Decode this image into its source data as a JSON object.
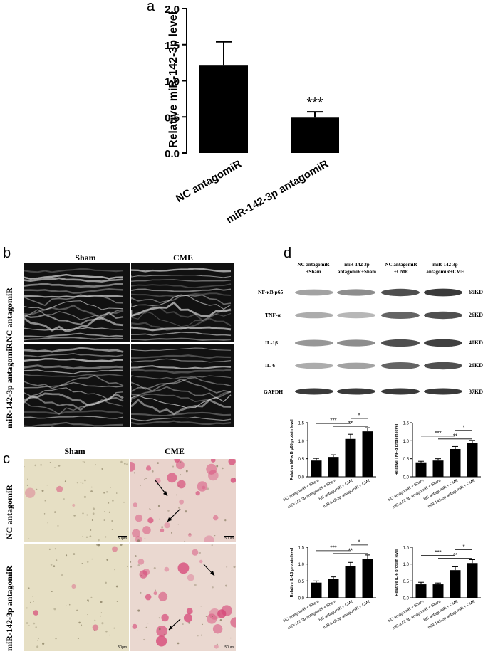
{
  "panels": {
    "a": "a",
    "b": "b",
    "c": "c",
    "d": "d"
  },
  "colors": {
    "bar": "#000000",
    "histo_bg": "#e6dfc4",
    "stain": "#d8527a",
    "echo_bg": "#141414"
  },
  "echo": {
    "col_labels": [
      "Sham",
      "CME"
    ],
    "row_labels": [
      "NC antagomiR",
      "miR-142-3p antagomiR"
    ]
  },
  "histology": {
    "col_labels": [
      "Sham",
      "CME"
    ],
    "row_labels": [
      "NC antagomiR",
      "miR-142-3p antagomiR"
    ],
    "scale_bar": "50μm"
  },
  "western": {
    "lanes": [
      "NC antagomiR\n+Sham",
      "miR-142-3p\nantagomiR+Sham",
      "NC antagomiR\n+CME",
      "miR-142-3p\nantagomiR+CME"
    ],
    "proteins": [
      "NF-κB p65",
      "TNF-α",
      "IL-1β",
      "IL-6",
      "GAPDH"
    ],
    "sizes": [
      "65KD",
      "26KD",
      "40KD",
      "26KD",
      "37KD"
    ],
    "intensity": [
      [
        0.45,
        0.55,
        0.85,
        0.95
      ],
      [
        0.4,
        0.35,
        0.75,
        0.85
      ],
      [
        0.5,
        0.55,
        0.85,
        0.92
      ],
      [
        0.4,
        0.45,
        0.75,
        0.85
      ],
      [
        0.95,
        0.95,
        0.95,
        0.95
      ]
    ]
  },
  "chart_data": [
    {
      "type": "bar",
      "title": "",
      "categories": [
        "NC antagomiR",
        "miR-142-3p antagomiR"
      ],
      "values": [
        1.21,
        0.49
      ],
      "errors": [
        0.33,
        0.08
      ],
      "ylabel": "Relative miR-142-3p level",
      "xlabel": "",
      "ylim": [
        0,
        2.0
      ],
      "yticks": [
        "0.0",
        "0.5",
        "1.0",
        "1.5",
        "2.0"
      ],
      "annotations": [
        "***"
      ]
    },
    {
      "type": "bar",
      "categories": [
        "NC antagomiR + Sham",
        "miR-142-3p antagomiR + Sham",
        "NC antagomiR + CME",
        "miR-142-3p antagomiR + CME"
      ],
      "values": [
        0.45,
        0.55,
        1.05,
        1.26
      ],
      "errors": [
        0.06,
        0.06,
        0.13,
        0.1
      ],
      "ylabel": "Relative NF-κ B p65 protein level",
      "ylim": [
        0,
        1.5
      ],
      "yticks": [
        "0.0",
        "0.5",
        "1.0",
        "1.5"
      ],
      "annotations": [
        "***",
        "**",
        "*"
      ]
    },
    {
      "type": "bar",
      "categories": [
        "NC antagomiR + Sham",
        "miR-142-3p antagomiR + Sham",
        "NC antagomiR + CME",
        "miR-142-3p antagomiR + CME"
      ],
      "values": [
        0.4,
        0.45,
        0.77,
        0.93
      ],
      "errors": [
        0.03,
        0.05,
        0.07,
        0.08
      ],
      "ylabel": "Relative TNF-α  protein level",
      "ylim": [
        0,
        1.5
      ],
      "yticks": [
        "0.0",
        "0.5",
        "1.0",
        "1.5"
      ],
      "annotations": [
        "***",
        "**",
        "*"
      ]
    },
    {
      "type": "bar",
      "categories": [
        "NC antagomiR + Sham",
        "miR-142-3p antagomiR + Sham",
        "NC antagomiR + CME",
        "miR-142-3p antagomiR + CME"
      ],
      "values": [
        0.45,
        0.56,
        0.95,
        1.15
      ],
      "errors": [
        0.05,
        0.06,
        0.1,
        0.12
      ],
      "ylabel": "Relative IL-1β  protein level",
      "ylim": [
        0,
        1.5
      ],
      "yticks": [
        "0.0",
        "0.5",
        "1.0",
        "1.5"
      ],
      "annotations": [
        "***",
        "**",
        "*"
      ]
    },
    {
      "type": "bar",
      "categories": [
        "NC antagomiR + Sham",
        "miR-142-3p antagomiR + Sham",
        "NC antagomiR + CME",
        "miR-142-3p antagomiR + CME"
      ],
      "values": [
        0.4,
        0.4,
        0.82,
        1.03
      ],
      "errors": [
        0.06,
        0.04,
        0.1,
        0.1
      ],
      "ylabel": "Relative IL-6  protein level",
      "ylim": [
        0,
        1.5
      ],
      "yticks": [
        "0.0",
        "0.5",
        "1.0",
        "1.5"
      ],
      "annotations": [
        "***",
        "**",
        "*"
      ]
    }
  ]
}
